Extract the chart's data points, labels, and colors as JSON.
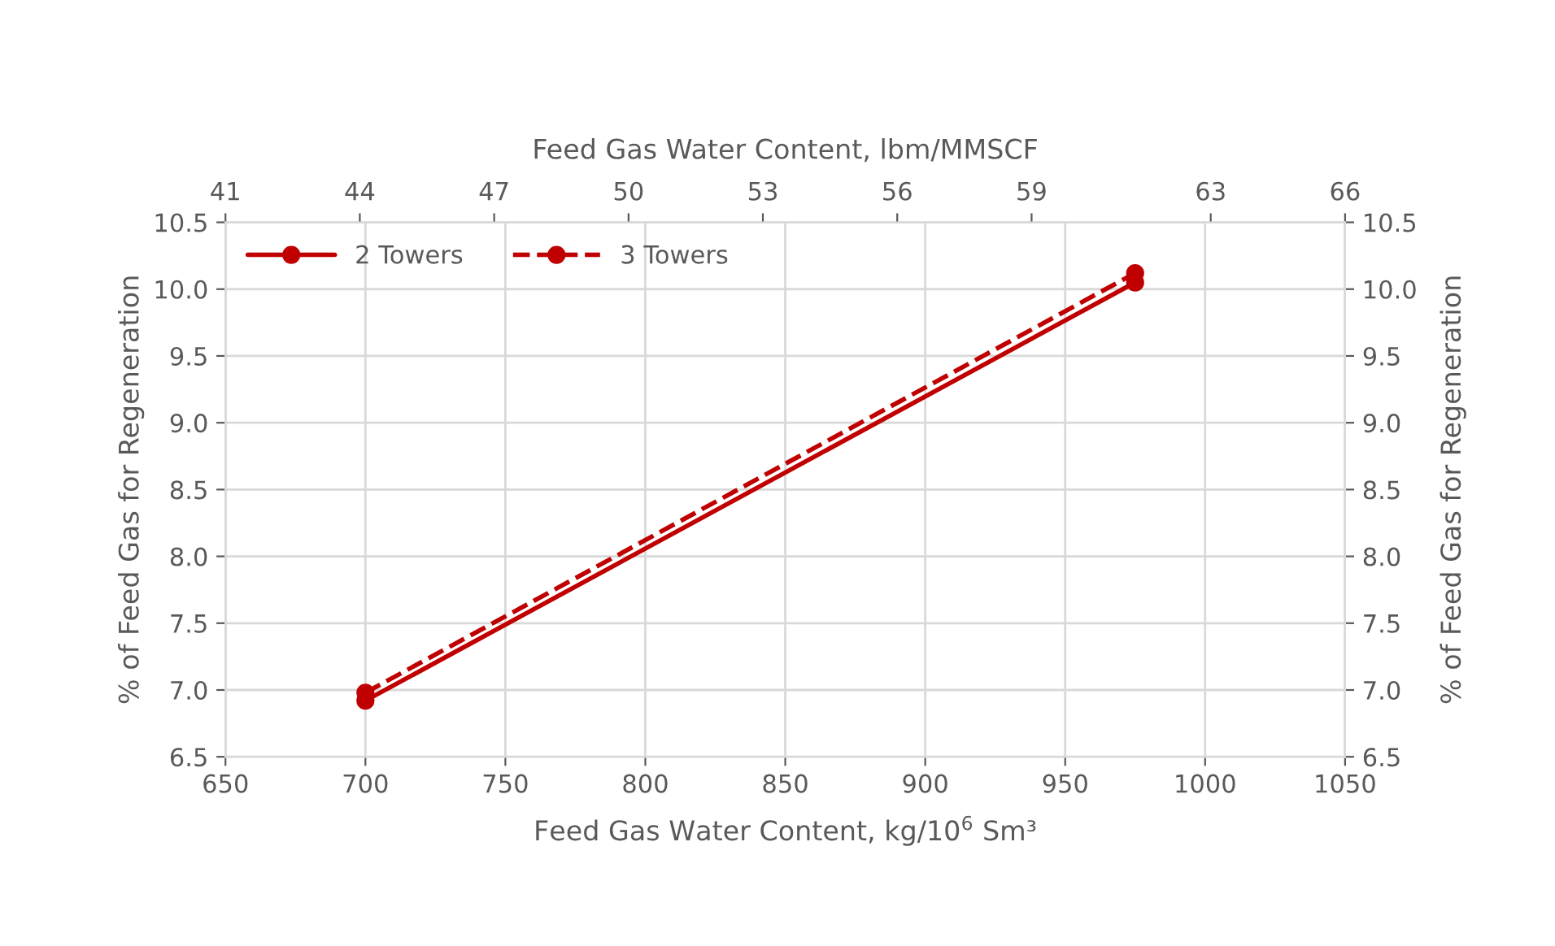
{
  "chart_data": {
    "type": "line",
    "xlabel": "Feed Gas Water Content, kg/10$^{6}$ Sm³",
    "x2label": "Feed Gas Water Content, lbm/MMSCF",
    "ylabel": "% of Feed Gas for Regeneration",
    "y2label": "% of Feed Gas for Regeneration",
    "series": [
      {
        "name": "2 Towers",
        "color": "#c00000",
        "values": [
          6.92,
          10.05
        ],
        "line_style": "solid"
      },
      {
        "name": "3 Towers",
        "color": "#c00000",
        "values": [
          6.98,
          10.12
        ],
        "line_style": "dashed"
      }
    ],
    "x": [
      700,
      975
    ],
    "xlim": [
      650,
      1050
    ],
    "xticks": [
      650,
      700,
      750,
      800,
      850,
      900,
      950,
      1000,
      1050
    ],
    "x2lim": [
      41,
      66
    ],
    "x2ticks": [
      41,
      44,
      47,
      50,
      53,
      56,
      59,
      63,
      66
    ],
    "ylim": [
      6.5,
      10.5
    ],
    "yticks": [
      {
        "value": 6.5,
        "label": "6.5"
      },
      {
        "value": 7.0,
        "label": "7.0"
      },
      {
        "value": 7.5,
        "label": "7.5"
      },
      {
        "value": 8.0,
        "label": "8.0"
      },
      {
        "value": 8.5,
        "label": "8.5"
      },
      {
        "value": 9.0,
        "label": "9.0"
      },
      {
        "value": 9.5,
        "label": "9.5"
      },
      {
        "value": 10.0,
        "label": "10.0"
      },
      {
        "value": 10.5,
        "label": "10.5"
      }
    ],
    "y2lim": [
      6.5,
      10.5
    ],
    "y2ticks": [
      {
        "value": 6.5,
        "label": "6.5"
      },
      {
        "value": 7.0,
        "label": "7.0"
      },
      {
        "value": 7.5,
        "label": "7.5"
      },
      {
        "value": 8.0,
        "label": "8.0"
      },
      {
        "value": 8.5,
        "label": "8.5"
      },
      {
        "value": 9.0,
        "label": "9.0"
      },
      {
        "value": 9.5,
        "label": "9.5"
      },
      {
        "value": 10.0,
        "label": "10.0"
      },
      {
        "value": 10.5,
        "label": "10.5"
      }
    ],
    "grid": true,
    "legend": "top left",
    "marker": "circle"
  }
}
